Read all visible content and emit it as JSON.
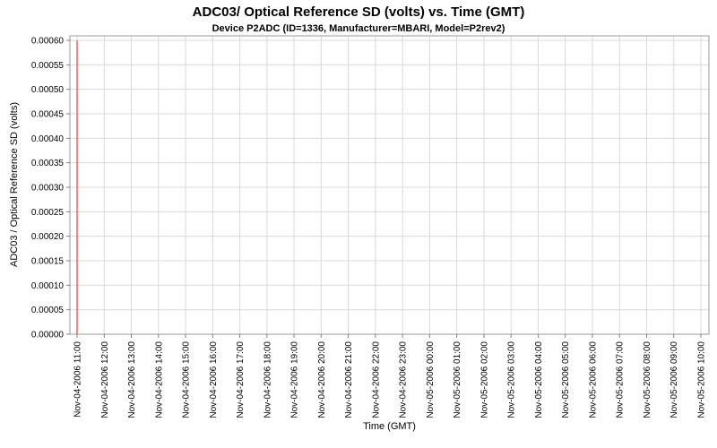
{
  "chart_data": {
    "type": "line",
    "title": "ADC03/ Optical Reference SD (volts) vs. Time (GMT)",
    "subtitle": "Device P2ADC (ID=1336, Manufacturer=MBARI, Model=P2rev2)",
    "xlabel": "Time (GMT)",
    "ylabel": "ADC03 / Optical Reference SD (volts)",
    "ylim": [
      0,
      0.0006
    ],
    "grid": true,
    "legend": "none",
    "x_ticks": [
      "Nov-04-2006 11:00",
      "Nov-04-2006 12:00",
      "Nov-04-2006 13:00",
      "Nov-04-2006 14:00",
      "Nov-04-2006 15:00",
      "Nov-04-2006 16:00",
      "Nov-04-2006 17:00",
      "Nov-04-2006 18:00",
      "Nov-04-2006 19:00",
      "Nov-04-2006 20:00",
      "Nov-04-2006 21:00",
      "Nov-04-2006 22:00",
      "Nov-04-2006 23:00",
      "Nov-05-2006 00:00",
      "Nov-05-2006 01:00",
      "Nov-05-2006 02:00",
      "Nov-05-2006 03:00",
      "Nov-05-2006 04:00",
      "Nov-05-2006 05:00",
      "Nov-05-2006 06:00",
      "Nov-05-2006 07:00",
      "Nov-05-2006 08:00",
      "Nov-05-2006 09:00",
      "Nov-05-2006 10:00"
    ],
    "y_ticks": [
      0,
      5e-05,
      0.0001,
      0.00015,
      0.0002,
      0.00025,
      0.0003,
      0.00035,
      0.0004,
      0.00045,
      0.0005,
      0.00055,
      0.0006
    ],
    "y_tick_labels": [
      "0.00000",
      "0.00005",
      "0.00010",
      "0.00015",
      "0.00020",
      "0.00025",
      "0.00030",
      "0.00035",
      "0.00040",
      "0.00045",
      "0.00050",
      "0.00055",
      "0.00060"
    ],
    "series": [
      {
        "name": "ADC03/ Optical Reference SD (volts)",
        "color": "#ff5050",
        "points": [
          {
            "x": "Nov-04-2006 11:00",
            "y": 0.0006
          },
          {
            "x": "Nov-04-2006 11:00",
            "y": 0.0
          }
        ]
      }
    ],
    "series_description": "Single red vertical spike at Nov-04-2006 11:00 spanning the full value range (0 to 0.0006 volts); no other data points visible in plot.",
    "colors": {
      "background": "#ffffff",
      "plot_background": "#ffffff",
      "grid": "#d9d9d9",
      "plot_border": "#9a9a9a",
      "tick": "#808080",
      "text": "#000000"
    }
  }
}
